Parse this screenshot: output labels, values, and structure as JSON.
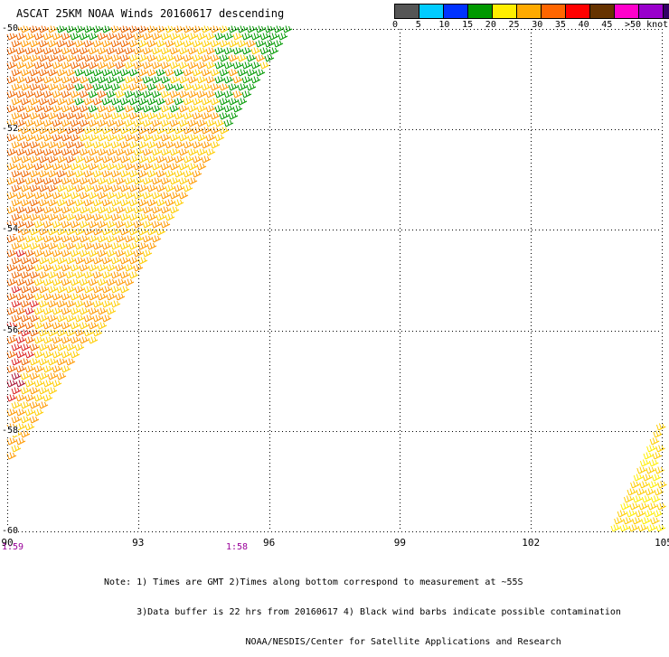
{
  "title": "ASCAT 25KM NOAA Winds 20160617 descending",
  "legend": {
    "colors": [
      "#555555",
      "#00ccff",
      "#0033ff",
      "#009900",
      "#ffee00",
      "#ffaa00",
      "#ff6600",
      "#ff0000",
      "#663300",
      "#ff00cc",
      "#9900cc",
      "#330066"
    ],
    "ticks": [
      "0",
      "5",
      "10",
      "15",
      "20",
      "25",
      "30",
      "35",
      "40",
      "45",
      ">50 knots"
    ]
  },
  "axes": {
    "lat_labels": [
      "-50",
      "-52",
      "-54",
      "-56",
      "-58",
      "-60"
    ],
    "lon_labels": [
      "90",
      "93",
      "96",
      "99",
      "102",
      "105"
    ],
    "lat_range": [
      -60,
      -50
    ],
    "lon_range": [
      90,
      105
    ]
  },
  "times": {
    "left": "1:59",
    "middle": "1:58",
    "color": "#990099"
  },
  "notes": [
    "Note: 1) Times are GMT 2)Times along bottom correspond to measurement at ~55S",
    "      3)Data buffer is 22 hrs from 20160617 4) Black wind barbs indicate possible contamination",
    "                          NOAA/NESDIS/Center for Satellite Applications and Research"
  ],
  "barb_colors": {
    "green": "#009900",
    "yellow": "#ffee00",
    "gold": "#ffcc00",
    "orange": "#ff9900",
    "darkorange": "#ee6600",
    "red": "#dd2222",
    "maroon": "#aa1133"
  }
}
